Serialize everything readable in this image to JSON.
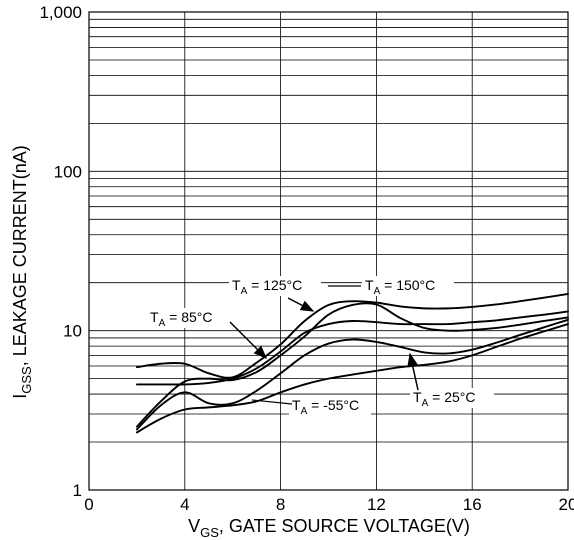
{
  "chart_data": {
    "type": "line",
    "xlabel_main": "V",
    "xlabel_sub": "GS",
    "xlabel_rest": ", GATE SOURCE VOLTAGE(V)",
    "ylabel_main": "I",
    "ylabel_sub": "GSS",
    "ylabel_rest": ", LEAKAGE CURRENT(nA)",
    "xlim": [
      0,
      20
    ],
    "ylim": [
      1,
      1000
    ],
    "yscale": "log",
    "grid": true,
    "x_ticks": [
      0,
      4,
      8,
      12,
      16,
      20
    ],
    "x_tick_labels": [
      "0",
      "4",
      "8",
      "12",
      "16",
      "20"
    ],
    "y_ticks": [
      1,
      10,
      100,
      1000
    ],
    "y_tick_labels": [
      "1",
      "10",
      "100",
      "1,000"
    ],
    "series": [
      {
        "label": "125°C",
        "x": [
          2,
          3,
          4,
          5,
          6,
          7,
          8,
          9,
          10,
          11,
          12,
          13,
          14,
          15,
          16,
          17,
          18,
          19,
          20
        ],
        "y": [
          4.6,
          4.6,
          4.6,
          4.7,
          5.0,
          5.8,
          7.4,
          9.7,
          11.0,
          11.5,
          11.3,
          11.0,
          11.0,
          11.0,
          11.3,
          11.6,
          12.1,
          12.6,
          13.2
        ]
      },
      {
        "label": "150°C",
        "x": [
          2,
          3,
          4,
          5,
          6,
          7,
          8,
          9,
          10,
          11,
          12,
          13,
          14,
          15,
          16,
          17,
          18,
          19,
          20
        ],
        "y": [
          5.9,
          6.2,
          6.2,
          5.4,
          5.1,
          6.3,
          8.2,
          11.5,
          14.5,
          15.3,
          15.0,
          14.2,
          13.8,
          13.8,
          14.1,
          14.6,
          15.3,
          16.1,
          17.0
        ]
      },
      {
        "label": "85°C",
        "x": [
          2,
          3,
          4,
          5,
          6,
          7,
          8,
          9,
          10,
          11,
          12,
          13,
          14,
          15,
          16,
          17,
          18,
          19,
          20
        ],
        "y": [
          2.5,
          3.6,
          4.8,
          5.0,
          4.9,
          5.5,
          7.0,
          9.2,
          12.6,
          14.5,
          14.6,
          12.0,
          10.4,
          10.0,
          10.1,
          10.4,
          10.9,
          11.5,
          12.1
        ]
      },
      {
        "label": "-55°C",
        "x": [
          2,
          3,
          4,
          5,
          6,
          7,
          8,
          9,
          10,
          11,
          12,
          13,
          14,
          15,
          16,
          17,
          18,
          19,
          20
        ],
        "y": [
          2.3,
          2.8,
          3.2,
          3.3,
          3.4,
          3.6,
          4.1,
          4.6,
          5.0,
          5.3,
          5.6,
          5.9,
          6.1,
          6.4,
          7.0,
          7.9,
          8.9,
          9.9,
          11.0
        ]
      },
      {
        "label": "25°C",
        "x": [
          2,
          3,
          4,
          5,
          6,
          7,
          8,
          9,
          10,
          11,
          12,
          13,
          14,
          15,
          16,
          17,
          18,
          19,
          20
        ],
        "y": [
          2.4,
          3.4,
          4.1,
          3.5,
          3.5,
          4.2,
          5.4,
          7.0,
          8.3,
          8.8,
          8.5,
          7.9,
          7.3,
          7.2,
          7.6,
          8.4,
          9.4,
          10.5,
          11.7
        ]
      }
    ],
    "annotations": [
      {
        "series": "125°C",
        "prefix": "T",
        "sub": "A",
        "text": " = 125°C"
      },
      {
        "series": "150°C",
        "prefix": "T",
        "sub": "A",
        "text": " = 150°C"
      },
      {
        "series": "85°C",
        "prefix": "T",
        "sub": "A",
        "text": " = 85°C"
      },
      {
        "series": "-55°C",
        "prefix": "T",
        "sub": "A",
        "text": " = -55°C"
      },
      {
        "series": "25°C",
        "prefix": "T",
        "sub": "A",
        "text": " = 25°C"
      }
    ]
  }
}
